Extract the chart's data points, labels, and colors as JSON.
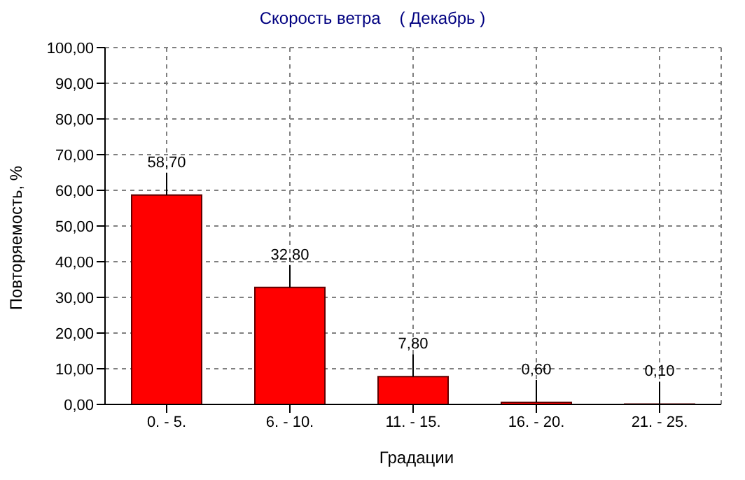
{
  "chart_data": {
    "type": "bar",
    "title": "Скорость ветра    ( Декабрь )",
    "xlabel": "Градации",
    "ylabel": "Повторяемость, %",
    "categories": [
      "0. - 5.",
      "6. - 10.",
      "11. - 15.",
      "16. - 20.",
      "21. - 25."
    ],
    "values": [
      58.7,
      32.8,
      7.8,
      0.6,
      0.1
    ],
    "value_labels": [
      "58,70",
      "32,80",
      "7,80",
      "0,60",
      "0,10"
    ],
    "color": "#ff0000",
    "ylim": [
      0,
      100
    ],
    "yticks": [
      {
        "value": 0,
        "label": "0,00"
      },
      {
        "value": 10,
        "label": "10,00"
      },
      {
        "value": 20,
        "label": "20,00"
      },
      {
        "value": 30,
        "label": "30,00"
      },
      {
        "value": 40,
        "label": "40,00"
      },
      {
        "value": 50,
        "label": "50,00"
      },
      {
        "value": 60,
        "label": "60,00"
      },
      {
        "value": 70,
        "label": "70,00"
      },
      {
        "value": 80,
        "label": "80,00"
      },
      {
        "value": 90,
        "label": "90,00"
      },
      {
        "value": 100,
        "label": "100,00"
      }
    ],
    "grid": true
  }
}
